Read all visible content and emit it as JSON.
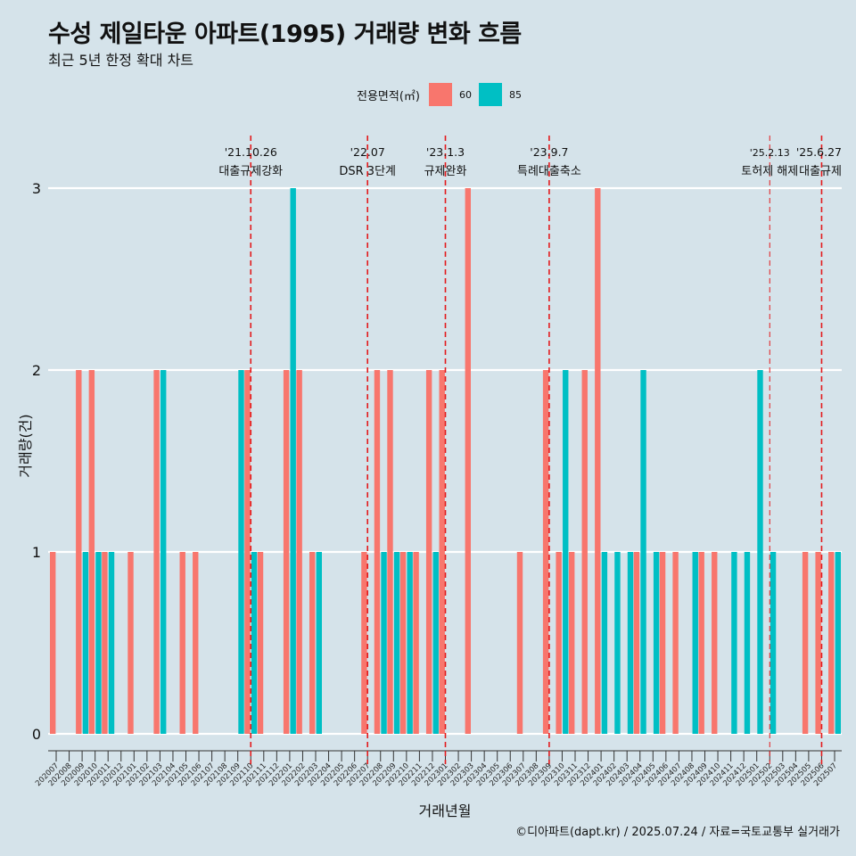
{
  "chart_data": {
    "type": "bar",
    "title": "수성 제일타운 아파트(1995) 거래량 변화 흐름",
    "subtitle": "최근 5년 한정 확대 차트",
    "xlabel": "거래년월",
    "ylabel": "거래량(건)",
    "caption": "©디아파트(dapt.kr) / 2025.07.24 / 자료=국토교통부 실거래가",
    "ylim": [
      0,
      3
    ],
    "yticks": [
      0,
      1,
      2,
      3
    ],
    "legend": {
      "title": "전용면적(㎡)",
      "position": "top"
    },
    "series_colors": {
      "60": "#f8766d",
      "85": "#00bfc4"
    },
    "categories": [
      "202007",
      "202008",
      "202009",
      "202010",
      "202011",
      "202012",
      "202101",
      "202102",
      "202103",
      "202104",
      "202105",
      "202106",
      "202107",
      "202108",
      "202109",
      "202110",
      "202111",
      "202112",
      "202201",
      "202202",
      "202203",
      "202204",
      "202205",
      "202206",
      "202207",
      "202208",
      "202209",
      "202210",
      "202211",
      "202212",
      "202301",
      "202302",
      "202303",
      "202304",
      "202305",
      "202306",
      "202307",
      "202308",
      "202309",
      "202310",
      "202311",
      "202312",
      "202401",
      "202402",
      "202403",
      "202404",
      "202405",
      "202406",
      "202407",
      "202408",
      "202409",
      "202410",
      "202411",
      "202412",
      "202501",
      "202502",
      "202503",
      "202504",
      "202505",
      "202506",
      "202507"
    ],
    "series": [
      {
        "name": "60",
        "values": [
          1,
          0,
          2,
          2,
          1,
          0,
          1,
          0,
          2,
          0,
          1,
          1,
          0,
          0,
          0,
          2,
          1,
          0,
          2,
          2,
          1,
          0,
          0,
          0,
          1,
          2,
          2,
          1,
          1,
          2,
          2,
          0,
          3,
          0,
          0,
          0,
          1,
          0,
          2,
          1,
          1,
          2,
          3,
          0,
          0,
          1,
          0,
          1,
          1,
          0,
          1,
          1,
          0,
          0,
          0,
          0,
          0,
          0,
          1,
          1,
          1
        ]
      },
      {
        "name": "85",
        "values": [
          0,
          0,
          1,
          1,
          1,
          0,
          0,
          0,
          2,
          0,
          0,
          0,
          0,
          0,
          2,
          1,
          0,
          0,
          3,
          0,
          1,
          0,
          0,
          0,
          0,
          1,
          1,
          1,
          0,
          1,
          0,
          0,
          0,
          0,
          0,
          0,
          0,
          0,
          0,
          2,
          0,
          0,
          1,
          1,
          1,
          2,
          1,
          0,
          0,
          1,
          0,
          0,
          1,
          1,
          2,
          1,
          0,
          0,
          0,
          0,
          1
        ]
      }
    ],
    "annotations": [
      {
        "date": "'21.10.26",
        "text": "대출규제강화",
        "at": "202110"
      },
      {
        "date": "'22.07",
        "text": "DSR 3단계",
        "at": "202207"
      },
      {
        "date": "'23.1.3",
        "text": "규제완화",
        "at": "202301"
      },
      {
        "date": "'23.9.7",
        "text": "특례대출축소",
        "at": "202309"
      },
      {
        "date": "'25.2.13",
        "text": "토허제 해제",
        "at": "202502"
      },
      {
        "date": "'25.6.27",
        "text": "대출규제",
        "at": "202506"
      }
    ]
  }
}
